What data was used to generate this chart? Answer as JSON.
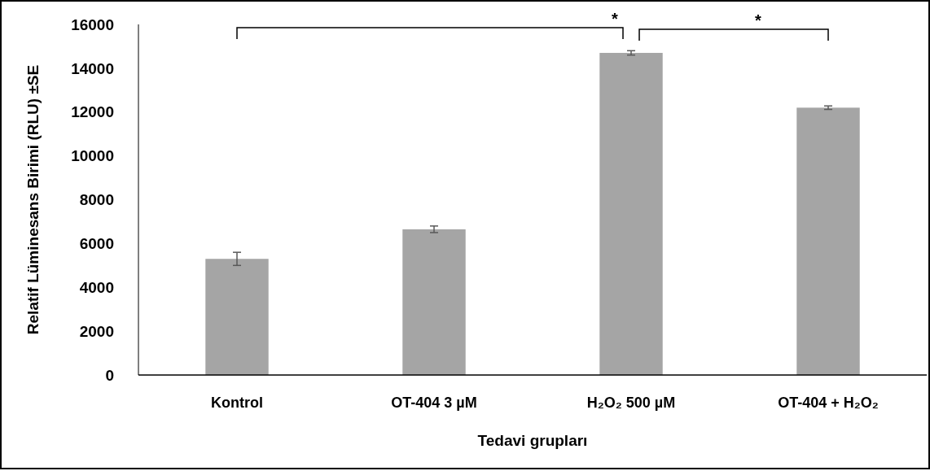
{
  "chart_data": {
    "type": "bar",
    "xlabel": "Tedavi grupları",
    "ylabel": "Relatif Lüminesans Birimi (RLU) ±SE",
    "categories": [
      "Kontrol",
      "OT-404 3 µM",
      "H₂O₂ 500 µM",
      "OT-404 + H₂O₂"
    ],
    "values": [
      5300,
      6650,
      14700,
      12200
    ],
    "color": "#a5a5a5",
    "errors": [
      300,
      150,
      100,
      80
    ],
    "ylim": [
      0,
      16000
    ],
    "yticks": [
      0,
      2000,
      4000,
      6000,
      8000,
      10000,
      12000,
      14000,
      16000
    ],
    "grid": false,
    "annotations": [
      "*",
      "*"
    ]
  }
}
